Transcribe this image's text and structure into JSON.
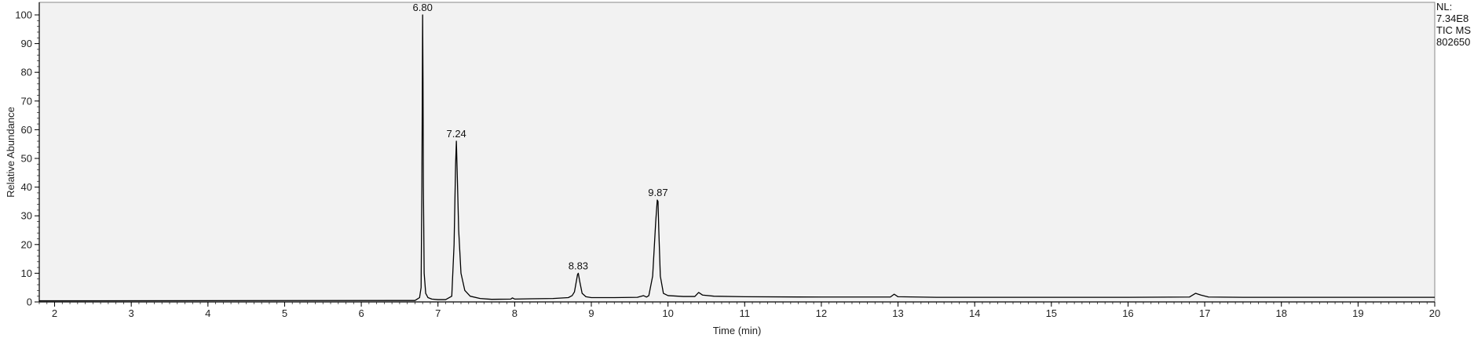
{
  "chart_data": {
    "type": "line",
    "title": "",
    "xlabel": "Time (min)",
    "ylabel": "Relative Abundance",
    "xlim": [
      1.8,
      20.0
    ],
    "ylim": [
      0,
      100
    ],
    "x_ticks": [
      "2",
      "3",
      "4",
      "5",
      "6",
      "7",
      "8",
      "9",
      "10",
      "11",
      "12",
      "13",
      "14",
      "15",
      "16",
      "17",
      "18",
      "19",
      "20"
    ],
    "y_ticks": [
      "0",
      "10",
      "20",
      "30",
      "40",
      "50",
      "60",
      "70",
      "80",
      "90",
      "100"
    ],
    "info": [
      "NL:",
      "7.34E8",
      "TIC  MS",
      "802650"
    ],
    "grid": false,
    "plot_background": "#f2f2f2",
    "line_color": "#000000",
    "peak_labels": [
      {
        "x": 6.8,
        "y": 100,
        "text": "6.80"
      },
      {
        "x": 7.24,
        "y": 56,
        "text": "7.24"
      },
      {
        "x": 8.83,
        "y": 10,
        "text": "8.83"
      },
      {
        "x": 9.87,
        "y": 35.5,
        "text": "9.87"
      }
    ],
    "series": [
      {
        "x": [
          1.8,
          6.7,
          6.76,
          6.78,
          6.79,
          6.8,
          6.805,
          6.81,
          6.82,
          6.84,
          6.87,
          6.92,
          7.0,
          7.1,
          7.18,
          7.21,
          7.23,
          7.24,
          7.25,
          7.27,
          7.3,
          7.35,
          7.42,
          7.55,
          7.7,
          7.95,
          7.97,
          8.0,
          8.2,
          8.5,
          8.7,
          8.75,
          8.78,
          8.8,
          8.82,
          8.83,
          8.85,
          8.88,
          8.93,
          9.0,
          9.3,
          9.6,
          9.68,
          9.72,
          9.75,
          9.8,
          9.84,
          9.86,
          9.87,
          9.88,
          9.9,
          9.94,
          10.0,
          10.2,
          10.35,
          10.4,
          10.45,
          10.6,
          11.0,
          12.0,
          12.9,
          12.95,
          13.0,
          13.5,
          14.0,
          15.0,
          16.0,
          16.8,
          16.88,
          16.95,
          17.05,
          17.5,
          18.0,
          19.0,
          20.0
        ],
        "y": [
          0.4,
          0.5,
          1.5,
          5,
          40,
          100,
          77,
          40,
          10,
          3,
          1.5,
          1.0,
          0.8,
          0.8,
          2,
          20,
          48,
          56,
          46,
          25,
          10,
          4,
          2,
          1.2,
          0.9,
          1.0,
          1.4,
          1.0,
          1.1,
          1.2,
          1.5,
          2.2,
          3.5,
          6.5,
          9.5,
          10,
          7,
          3,
          1.8,
          1.5,
          1.5,
          1.6,
          2.2,
          1.7,
          2.2,
          9,
          28,
          35.5,
          35,
          25,
          9,
          3,
          2.2,
          1.9,
          1.9,
          3.3,
          2.4,
          2.0,
          1.8,
          1.7,
          1.7,
          2.7,
          1.8,
          1.6,
          1.6,
          1.6,
          1.6,
          1.7,
          3.0,
          2.4,
          1.7,
          1.6,
          1.6,
          1.6,
          1.6
        ]
      }
    ]
  }
}
